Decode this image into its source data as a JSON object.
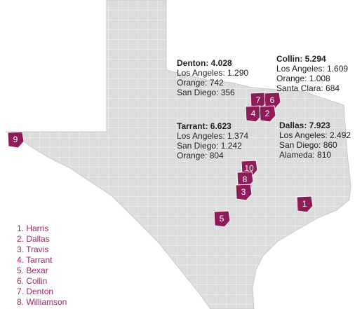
{
  "callouts": [
    {
      "title": "Denton: 4.028",
      "lines": [
        "Los Angeles: 1.290",
        "Orange: 742",
        "San Diego: 356"
      ]
    },
    {
      "title": "Collin: 5.294",
      "lines": [
        "Los Angeles: 1.609",
        "Orange: 1.008",
        "Santa Clara: 684"
      ]
    },
    {
      "title": "Tarrant: 6.623",
      "lines": [
        "Los Angeles: 1.374",
        "San Diego: 1.242",
        "Orange: 804"
      ]
    },
    {
      "title": "Dallas: 7.923",
      "lines": [
        "Los Angeles: 2.492",
        "San Diego: 860",
        "Alameda: 810"
      ]
    }
  ],
  "markers": [
    "9",
    "7",
    "6",
    "4",
    "2",
    "10",
    "8",
    "3",
    "1",
    "5"
  ],
  "legend": [
    "1. Harris",
    "2. Dallas",
    "3. Travis",
    "4. Tarrant",
    "5. Bexar",
    "6. Collin",
    "7. Denton",
    "8. Williamson"
  ]
}
